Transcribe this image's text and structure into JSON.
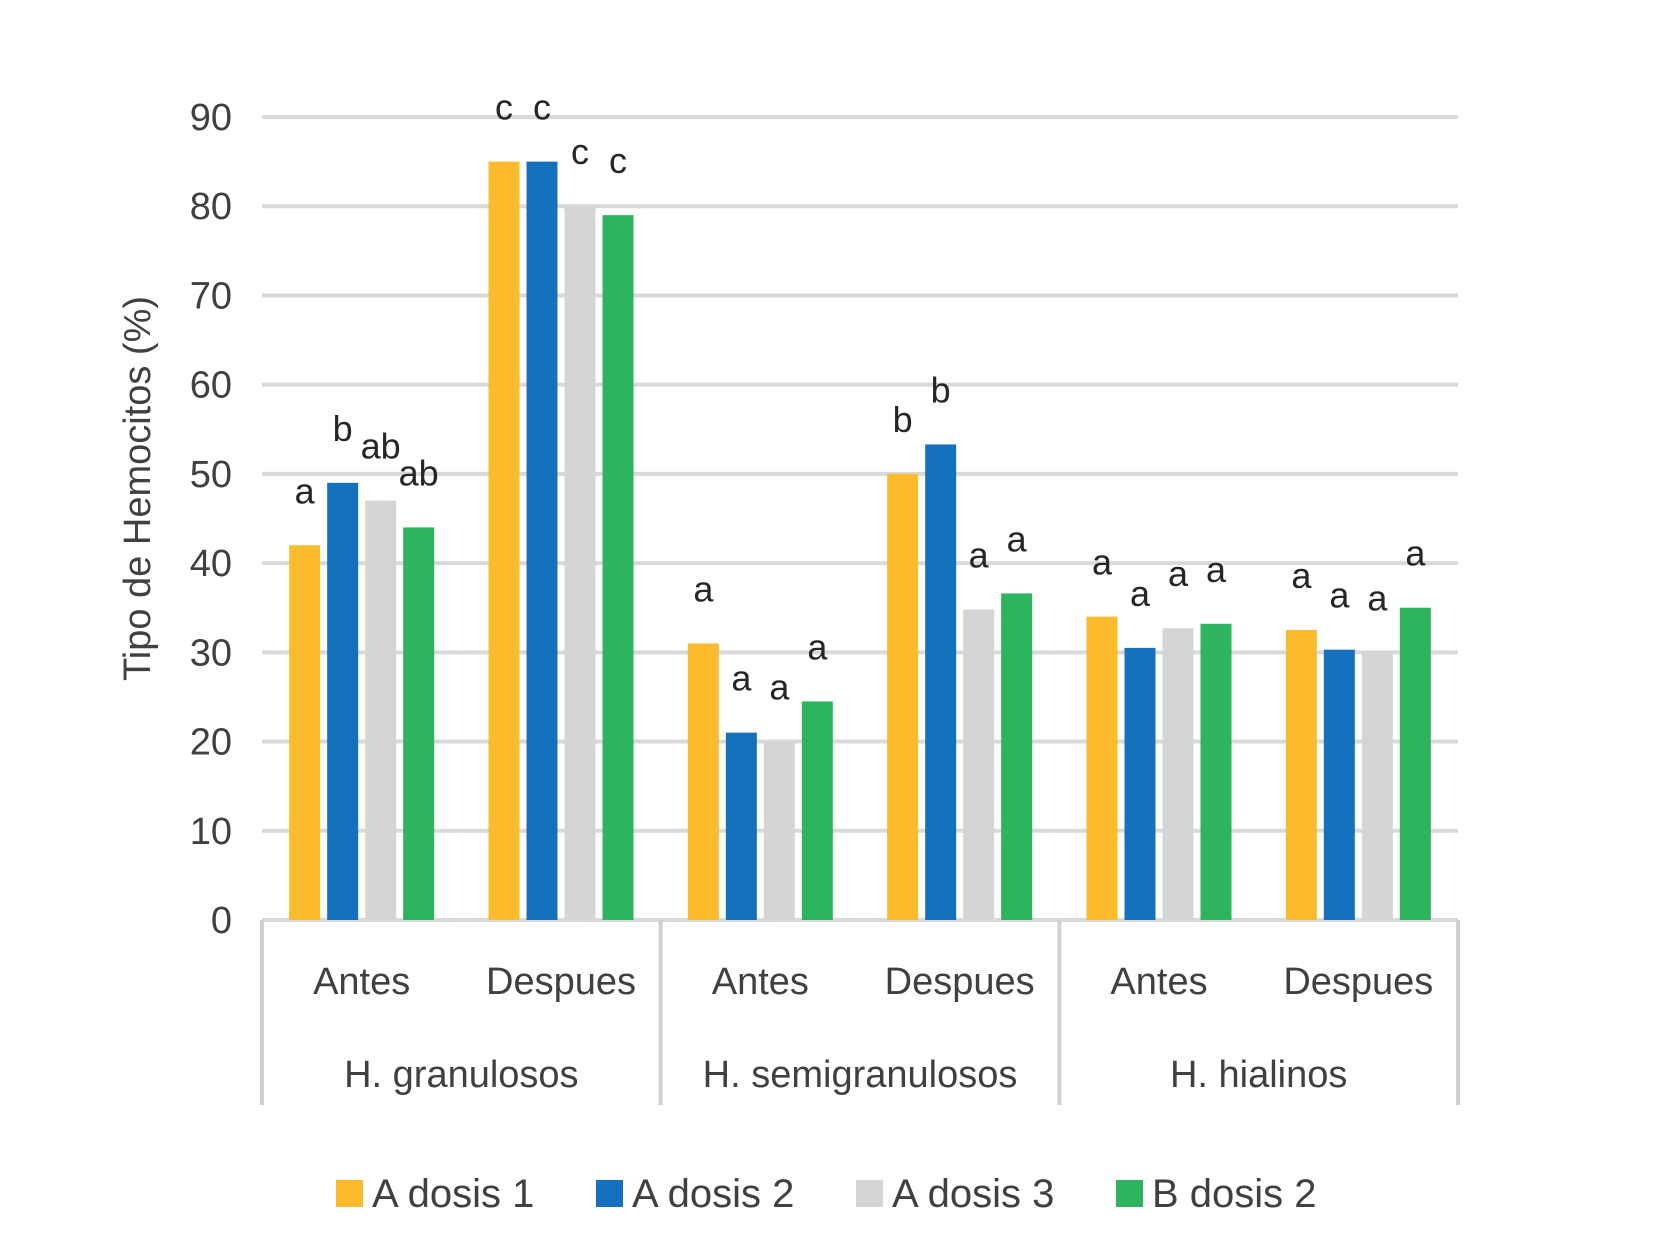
{
  "chart_data": {
    "type": "bar",
    "title": "",
    "xlabel": "",
    "ylabel": "Tipo de Hemocitos (%)",
    "ylim": [
      0,
      90
    ],
    "yticks": [
      0,
      10,
      20,
      30,
      40,
      50,
      60,
      70,
      80,
      90
    ],
    "grid": true,
    "legend_position": "bottom",
    "groups": [
      {
        "name": "H. granulosos",
        "categories": [
          "Antes",
          "Despues"
        ]
      },
      {
        "name": "H. semigranulosos",
        "categories": [
          "Antes",
          "Despues"
        ]
      },
      {
        "name": "H. hialinos",
        "categories": [
          "Antes",
          "Despues"
        ]
      }
    ],
    "series": [
      {
        "name": "A dosis 1",
        "color": "#FBBB2C",
        "values": [
          42,
          85,
          31,
          50,
          34,
          32.5
        ],
        "labels": [
          "a",
          "c",
          "a",
          "b",
          "a",
          "a"
        ]
      },
      {
        "name": "A dosis 2",
        "color": "#1570BE",
        "values": [
          49,
          85,
          21,
          53.3,
          30.5,
          30.3
        ],
        "labels": [
          "b",
          "c",
          "a",
          "b",
          "a",
          "a"
        ]
      },
      {
        "name": "A dosis 3",
        "color": "#D4D6D6",
        "values": [
          47,
          80,
          20,
          34.8,
          32.7,
          30
        ],
        "labels": [
          "ab",
          "c",
          "a",
          "a",
          "a",
          "a"
        ]
      },
      {
        "name": "B dosis 2",
        "color": "#2EB35E",
        "values": [
          44,
          79,
          24.5,
          36.6,
          33.2,
          35
        ],
        "labels": [
          "ab",
          "c",
          "a",
          "a",
          "a",
          "a"
        ]
      }
    ],
    "colors": {
      "gridline": "#D9D9D9",
      "axis": "#D0D0D0",
      "text": "#404040"
    }
  }
}
